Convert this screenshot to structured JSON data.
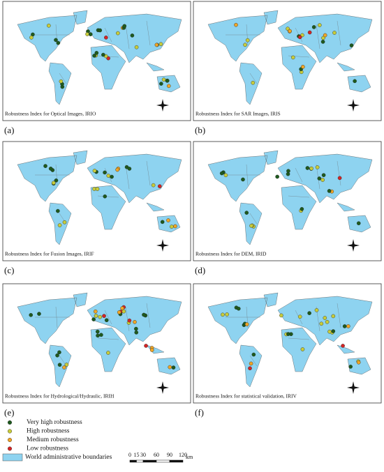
{
  "panels": [
    {
      "caption": "Robustness Index for Optical Images, IRIO",
      "letter": "(a)"
    },
    {
      "caption": "Robustness Index for SAR Images, IRIS",
      "letter": "(b)"
    },
    {
      "caption": "Robustness Index for Fusion Images, IRIF",
      "letter": "(c)"
    },
    {
      "caption": "Robustness Index for DEM, IRID",
      "letter": "(d)"
    },
    {
      "caption": "Robustness Index for Hydrological/Hydraulic, IRIH",
      "letter": "(e)"
    },
    {
      "caption": "Robustness Index for statistical validation, IRIV",
      "letter": "(f)"
    }
  ],
  "legend": [
    {
      "label": "Very high robustness",
      "color": "#1e5a1e"
    },
    {
      "label": "High robustness",
      "color": "#c8cc3a"
    },
    {
      "label": "Medium robustness",
      "color": "#f0a526"
    },
    {
      "label": "Low robustness",
      "color": "#d42424"
    },
    {
      "label": "World administrative boundaries",
      "color": "#8ed3f0"
    }
  ],
  "scale": {
    "ticks": [
      0,
      15,
      30,
      60,
      90,
      120
    ],
    "unit": "km"
  }
}
